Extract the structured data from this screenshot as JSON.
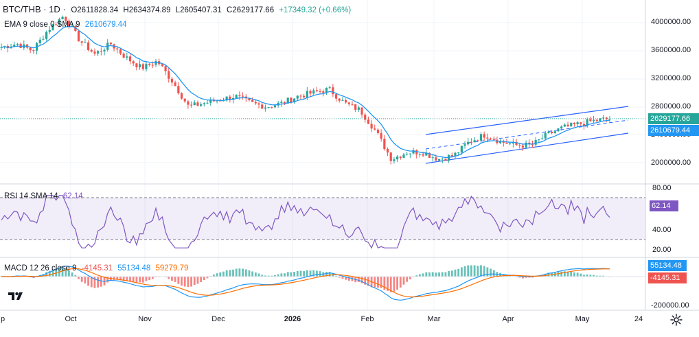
{
  "header": {
    "symbol": "BTC/THB · 1D · ",
    "open": "O2611828.34",
    "high": "H2634374.89",
    "low": "L2605407.31",
    "close": "C2629177.66",
    "change": "+17349.32 (+0.66%)"
  },
  "ema_legend": {
    "label": "EMA 9 close 0 SMA 9",
    "value": "2610679.44"
  },
  "rsi_legend": {
    "label": "RSI 14 SMA 14",
    "value": "62.14"
  },
  "macd_legend": {
    "label": "MACD 12 26 close 9",
    "hist": "-4145.31",
    "macd": "55134.48",
    "signal": "59279.79"
  },
  "price_axis": {
    "ticks": [
      "4000000.00",
      "3600000.00",
      "3200000.00",
      "2800000.00",
      "2400000.00",
      "2000000.00"
    ]
  },
  "price_labels": {
    "last": "2629177.66",
    "ema": "2610679.44"
  },
  "rsi_axis": {
    "ticks": [
      "80.00",
      "40.00",
      "20.00"
    ],
    "label": "62.14"
  },
  "macd_axis": {
    "ticks": [
      "-200000.00"
    ],
    "macd_label": "55134.48",
    "hist_label": "-4145.31"
  },
  "time_axis": {
    "labels": [
      "p",
      "Oct",
      "Nov",
      "Dec",
      "2026",
      "Feb",
      "Mar",
      "Apr",
      "May",
      "24"
    ]
  },
  "colors": {
    "up": "#26a69a",
    "down": "#ef5350",
    "ema": "#2196f3",
    "rsi": "#7e57c2",
    "macd": "#2196f3",
    "signal": "#ff6d00",
    "channel": "#2962ff"
  },
  "icons": {
    "settings": "gear-icon",
    "logo": "tradingview-logo-icon"
  },
  "chart_data": [
    {
      "type": "candlestick",
      "title": "BTC/THB · 1D",
      "ylim": [
        1850000,
        4250000
      ],
      "x_labels": [
        "Sep",
        "Oct",
        "Nov",
        "Dec",
        "2026",
        "Feb",
        "Mar",
        "Apr",
        "May",
        "24"
      ],
      "series": [
        {
          "name": "Close",
          "approx_path": [
            [
              "Sep",
              3650000
            ],
            [
              "Sep mid",
              3700000
            ],
            [
              "Sep end",
              3600000
            ],
            [
              "Oct 1",
              3900000
            ],
            [
              "Oct 6",
              4100000
            ],
            [
              "Oct 12",
              3750000
            ],
            [
              "Oct 20",
              3550000
            ],
            [
              "Oct 28",
              3700000
            ],
            [
              "Nov 3",
              3500000
            ],
            [
              "Nov 7",
              3350000
            ],
            [
              "Nov 12",
              3450000
            ],
            [
              "Nov 18",
              3150000
            ],
            [
              "Nov 22",
              2800000
            ],
            [
              "Nov 26",
              2850000
            ],
            [
              "Dec 1",
              2900000
            ],
            [
              "Dec 8",
              2950000
            ],
            [
              "Dec 15",
              2850000
            ],
            [
              "Dec 22",
              2800000
            ],
            [
              "Dec 30",
              2850000
            ],
            [
              "Jan 5",
              2950000
            ],
            [
              "Jan 12",
              3000000
            ],
            [
              "Jan 15",
              3050000
            ],
            [
              "Jan 20",
              2850000
            ],
            [
              "Jan 26",
              2750000
            ],
            [
              "Feb 1",
              2450000
            ],
            [
              "Feb 5",
              2050000
            ],
            [
              "Feb 10",
              2150000
            ],
            [
              "Feb 18",
              2150000
            ],
            [
              "Feb 25",
              2050000
            ],
            [
              "Mar 1",
              2100000
            ],
            [
              "Mar 8",
              2300000
            ],
            [
              "Mar 15",
              2400000
            ],
            [
              "Mar 22",
              2300000
            ],
            [
              "Apr 1",
              2250000
            ],
            [
              "Apr 10",
              2250000
            ],
            [
              "Apr 20",
              2400000
            ],
            [
              "Apr 28",
              2500000
            ],
            [
              "May 5",
              2550000
            ],
            [
              "May 12",
              2600000
            ],
            [
              "May 18",
              2630000
            ]
          ]
        },
        {
          "name": "EMA 9",
          "last": 2610679.44
        }
      ],
      "annotations": [
        "ascending parallel channel Feb–May"
      ]
    },
    {
      "type": "line",
      "title": "RSI 14",
      "ylim": [
        10,
        85
      ],
      "bands": [
        30,
        70
      ],
      "series": [
        {
          "name": "RSI",
          "last": 62.14
        }
      ]
    },
    {
      "type": "bar+line",
      "title": "MACD 12 26 close 9",
      "series": [
        {
          "name": "MACD",
          "last": 55134.48
        },
        {
          "name": "Signal",
          "last": 59279.79
        },
        {
          "name": "Histogram",
          "last": -4145.31
        }
      ]
    }
  ]
}
